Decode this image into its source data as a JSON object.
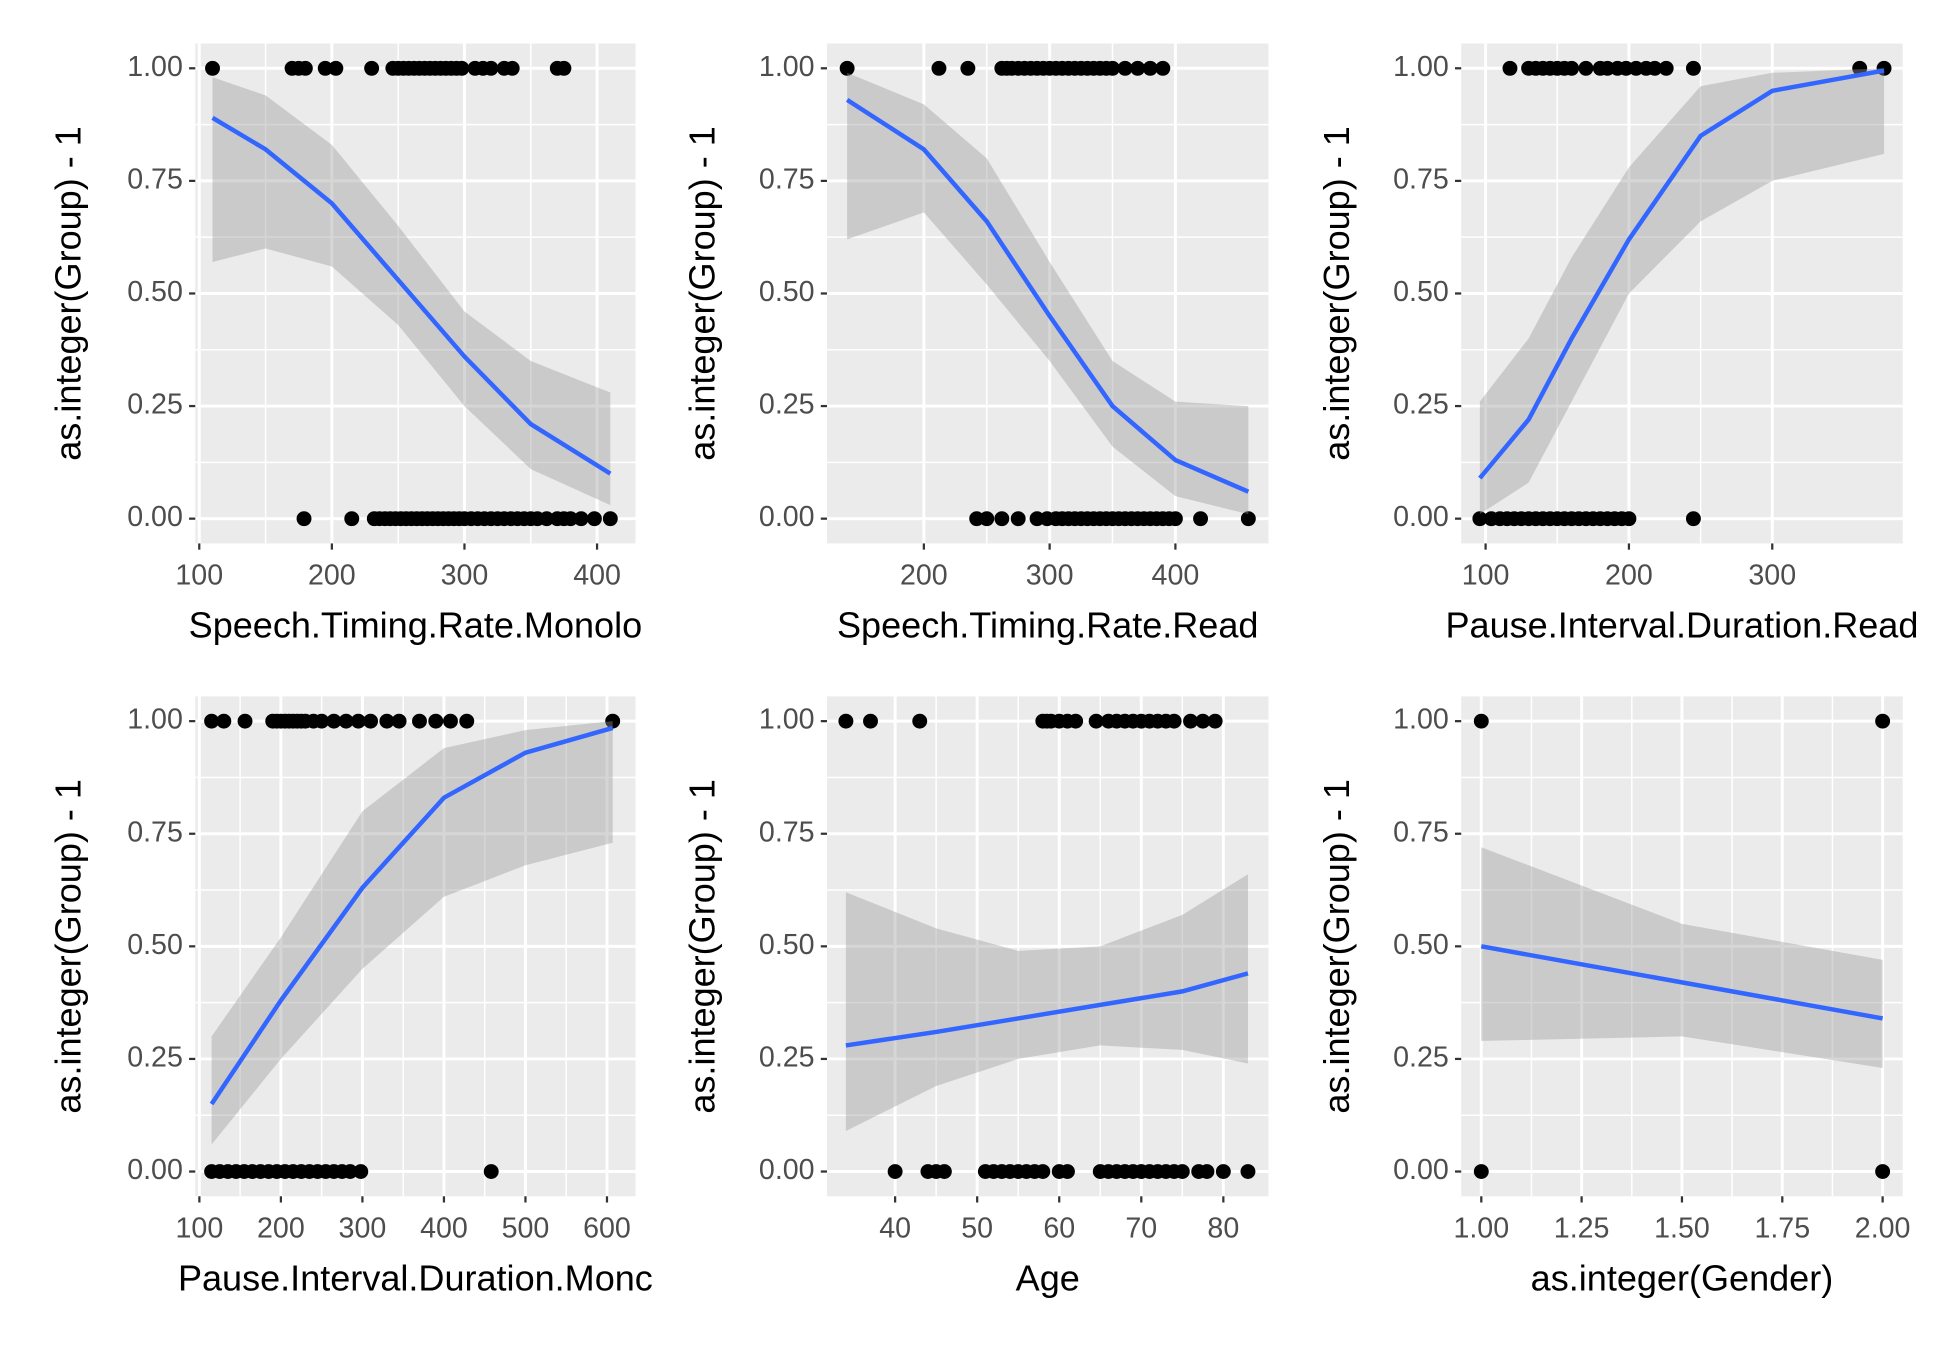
{
  "chart_data": [
    {
      "type": "scatter",
      "x_label": "Speech.Timing.Rate.Monolo",
      "y_label": "as.integer(Group) - 1",
      "xlim": [
        97,
        429
      ],
      "xticks": [
        100,
        200,
        300,
        400
      ],
      "ylim": [
        -0.055,
        1.055
      ],
      "yticks": [
        {
          "value": 0,
          "label": "0.00"
        },
        0.25,
        {
          "value": 0.5,
          "label": "0.50"
        },
        0.75,
        {
          "value": 1,
          "label": "1.00"
        }
      ],
      "grid": true,
      "points": {
        "color": "#000000",
        "x": [
          110,
          170,
          175,
          180,
          195,
          203,
          230,
          246,
          250,
          254,
          258,
          262,
          266,
          270,
          274,
          278,
          282,
          286,
          290,
          294,
          298,
          308,
          314,
          320,
          330,
          336,
          370,
          375,
          179,
          215,
          232,
          236,
          240,
          244,
          248,
          252,
          256,
          260,
          264,
          268,
          272,
          276,
          280,
          284,
          288,
          292,
          296,
          300,
          305,
          310,
          315,
          320,
          325,
          330,
          335,
          340,
          345,
          350,
          355,
          362,
          370,
          375,
          380,
          388,
          398,
          410
        ],
        "y": [
          1,
          1,
          1,
          1,
          1,
          1,
          1,
          1,
          1,
          1,
          1,
          1,
          1,
          1,
          1,
          1,
          1,
          1,
          1,
          1,
          1,
          1,
          1,
          1,
          1,
          1,
          1,
          1,
          0,
          0,
          0,
          0,
          0,
          0,
          0,
          0,
          0,
          0,
          0,
          0,
          0,
          0,
          0,
          0,
          0,
          0,
          0,
          0,
          0,
          0,
          0,
          0,
          0,
          0,
          0,
          0,
          0,
          0,
          0,
          0,
          0,
          0,
          0,
          0,
          0,
          0
        ]
      },
      "fit": {
        "color": "#3366ff",
        "band_color": "#999999",
        "x": [
          110,
          150,
          200,
          250,
          300,
          350,
          410
        ],
        "y": [
          0.89,
          0.82,
          0.7,
          0.53,
          0.36,
          0.21,
          0.1
        ],
        "lower": [
          0.57,
          0.6,
          0.56,
          0.43,
          0.25,
          0.11,
          0.03
        ],
        "upper": [
          0.98,
          0.94,
          0.83,
          0.65,
          0.46,
          0.35,
          0.28
        ]
      }
    },
    {
      "type": "scatter",
      "x_label": "Speech.Timing.Rate.Read",
      "y_label": "as.integer(Group) - 1",
      "xlim": [
        123,
        474
      ],
      "xticks": [
        200,
        300,
        400
      ],
      "ylim": [
        -0.055,
        1.055
      ],
      "yticks": [
        {
          "value": 0,
          "label": "0.00"
        },
        0.25,
        {
          "value": 0.5,
          "label": "0.50"
        },
        0.75,
        {
          "value": 1,
          "label": "1.00"
        }
      ],
      "grid": true,
      "points": {
        "color": "#000000",
        "x": [
          139,
          212,
          235,
          262,
          266,
          270,
          275,
          280,
          285,
          290,
          295,
          300,
          305,
          310,
          315,
          320,
          325,
          330,
          335,
          340,
          345,
          350,
          360,
          370,
          380,
          390,
          242,
          250,
          262,
          275,
          290,
          298,
          305,
          310,
          315,
          320,
          325,
          330,
          335,
          340,
          345,
          350,
          355,
          360,
          365,
          370,
          375,
          380,
          385,
          390,
          395,
          400,
          420,
          458
        ],
        "y": [
          1,
          1,
          1,
          1,
          1,
          1,
          1,
          1,
          1,
          1,
          1,
          1,
          1,
          1,
          1,
          1,
          1,
          1,
          1,
          1,
          1,
          1,
          1,
          1,
          1,
          1,
          0,
          0,
          0,
          0,
          0,
          0,
          0,
          0,
          0,
          0,
          0,
          0,
          0,
          0,
          0,
          0,
          0,
          0,
          0,
          0,
          0,
          0,
          0,
          0,
          0,
          0,
          0,
          0
        ]
      },
      "fit": {
        "color": "#3366ff",
        "band_color": "#999999",
        "x": [
          139,
          200,
          250,
          300,
          350,
          400,
          458
        ],
        "y": [
          0.93,
          0.82,
          0.66,
          0.45,
          0.25,
          0.13,
          0.06
        ],
        "lower": [
          0.62,
          0.68,
          0.52,
          0.35,
          0.16,
          0.05,
          0.01
        ],
        "upper": [
          0.99,
          0.92,
          0.8,
          0.57,
          0.35,
          0.26,
          0.25
        ]
      }
    },
    {
      "type": "scatter",
      "x_label": "Pause.Interval.Duration.Read",
      "y_label": "as.integer(Group) - 1",
      "xlim": [
        83,
        391
      ],
      "xticks": [
        100,
        200,
        300
      ],
      "ylim": [
        -0.055,
        1.055
      ],
      "yticks": [
        {
          "value": 0,
          "label": "0.00"
        },
        0.25,
        {
          "value": 0.5,
          "label": "0.50"
        },
        0.75,
        {
          "value": 1,
          "label": "1.00"
        }
      ],
      "grid": true,
      "points": {
        "color": "#000000",
        "x": [
          117,
          130,
          135,
          140,
          145,
          150,
          155,
          160,
          170,
          180,
          185,
          192,
          198,
          205,
          212,
          218,
          226,
          245,
          361,
          378,
          96,
          104,
          110,
          115,
          120,
          125,
          130,
          135,
          140,
          145,
          150,
          155,
          160,
          165,
          170,
          175,
          180,
          185,
          190,
          195,
          200,
          245
        ],
        "y": [
          1,
          1,
          1,
          1,
          1,
          1,
          1,
          1,
          1,
          1,
          1,
          1,
          1,
          1,
          1,
          1,
          1,
          1,
          1,
          1,
          0,
          0,
          0,
          0,
          0,
          0,
          0,
          0,
          0,
          0,
          0,
          0,
          0,
          0,
          0,
          0,
          0,
          0,
          0,
          0,
          0,
          0
        ]
      },
      "fit": {
        "color": "#3366ff",
        "band_color": "#999999",
        "x": [
          96,
          130,
          160,
          200,
          250,
          300,
          378
        ],
        "y": [
          0.09,
          0.22,
          0.4,
          0.62,
          0.85,
          0.95,
          0.995
        ],
        "lower": [
          0.01,
          0.08,
          0.26,
          0.5,
          0.66,
          0.75,
          0.81
        ],
        "upper": [
          0.26,
          0.4,
          0.58,
          0.78,
          0.96,
          0.99,
          1.0
        ]
      }
    },
    {
      "type": "scatter",
      "x_label": "Pause.Interval.Duration.Monc",
      "y_label": "as.integer(Group) - 1",
      "xlim": [
        95,
        635
      ],
      "xticks": [
        100,
        200,
        300,
        400,
        500,
        600
      ],
      "ylim": [
        -0.055,
        1.055
      ],
      "yticks": [
        {
          "value": 0,
          "label": "0.00"
        },
        0.25,
        {
          "value": 0.5,
          "label": "0.50"
        },
        0.75,
        {
          "value": 1,
          "label": "1.00"
        }
      ],
      "grid": true,
      "points": {
        "color": "#000000",
        "x": [
          115,
          130,
          156,
          190,
          195,
          200,
          205,
          210,
          215,
          220,
          225,
          230,
          240,
          250,
          265,
          280,
          295,
          310,
          330,
          345,
          370,
          390,
          408,
          428,
          607,
          115,
          125,
          135,
          145,
          155,
          165,
          175,
          185,
          195,
          205,
          215,
          225,
          235,
          245,
          255,
          265,
          275,
          285,
          298,
          458
        ],
        "y": [
          1,
          1,
          1,
          1,
          1,
          1,
          1,
          1,
          1,
          1,
          1,
          1,
          1,
          1,
          1,
          1,
          1,
          1,
          1,
          1,
          1,
          1,
          1,
          1,
          1,
          0,
          0,
          0,
          0,
          0,
          0,
          0,
          0,
          0,
          0,
          0,
          0,
          0,
          0,
          0,
          0,
          0,
          0,
          0,
          0
        ]
      },
      "fit": {
        "color": "#3366ff",
        "band_color": "#999999",
        "x": [
          115,
          200,
          300,
          400,
          500,
          607
        ],
        "y": [
          0.15,
          0.38,
          0.63,
          0.83,
          0.93,
          0.985
        ],
        "lower": [
          0.06,
          0.25,
          0.45,
          0.61,
          0.68,
          0.73
        ],
        "upper": [
          0.3,
          0.52,
          0.8,
          0.94,
          0.98,
          1.0
        ]
      }
    },
    {
      "type": "scatter",
      "x_label": "Age",
      "y_label": "as.integer(Group) - 1",
      "xlim": [
        31.7,
        85.5
      ],
      "xticks": [
        40,
        50,
        60,
        70,
        80
      ],
      "ylim": [
        -0.055,
        1.055
      ],
      "yticks": [
        {
          "value": 0,
          "label": "0.00"
        },
        0.25,
        {
          "value": 0.5,
          "label": "0.50"
        },
        0.75,
        {
          "value": 1,
          "label": "1.00"
        }
      ],
      "grid": true,
      "points": {
        "color": "#000000",
        "x": [
          34,
          37,
          43,
          58,
          58.5,
          59,
          60,
          61,
          62,
          64.5,
          66,
          67,
          68,
          69,
          70,
          71,
          72,
          73,
          74,
          76,
          77.5,
          79,
          40,
          44,
          45,
          46,
          51,
          52,
          53,
          54,
          55,
          56,
          57,
          58,
          60,
          61,
          65,
          66,
          67,
          68,
          69,
          70,
          71,
          72,
          73,
          74,
          75,
          77,
          78,
          80,
          83
        ],
        "y": [
          1,
          1,
          1,
          1,
          1,
          1,
          1,
          1,
          1,
          1,
          1,
          1,
          1,
          1,
          1,
          1,
          1,
          1,
          1,
          1,
          1,
          1,
          0,
          0,
          0,
          0,
          0,
          0,
          0,
          0,
          0,
          0,
          0,
          0,
          0,
          0,
          0,
          0,
          0,
          0,
          0,
          0,
          0,
          0,
          0,
          0,
          0,
          0,
          0,
          0,
          0
        ]
      },
      "fit": {
        "color": "#3366ff",
        "band_color": "#999999",
        "x": [
          34,
          45,
          55,
          65,
          75,
          83
        ],
        "y": [
          0.28,
          0.31,
          0.34,
          0.37,
          0.4,
          0.44
        ],
        "lower": [
          0.09,
          0.19,
          0.25,
          0.28,
          0.27,
          0.24
        ],
        "upper": [
          0.62,
          0.54,
          0.49,
          0.5,
          0.57,
          0.66
        ]
      }
    },
    {
      "type": "scatter",
      "x_label": "as.integer(Gender)",
      "y_label": "as.integer(Group) - 1",
      "xlim": [
        0.95,
        2.05
      ],
      "xticks": [
        {
          "value": 1,
          "label": "1.00"
        },
        1.25,
        {
          "value": 1.5,
          "label": "1.50"
        },
        1.75,
        {
          "value": 2,
          "label": "2.00"
        }
      ],
      "ylim": [
        -0.055,
        1.055
      ],
      "yticks": [
        {
          "value": 0,
          "label": "0.00"
        },
        0.25,
        {
          "value": 0.5,
          "label": "0.50"
        },
        0.75,
        {
          "value": 1,
          "label": "1.00"
        }
      ],
      "grid": true,
      "points": {
        "color": "#000000",
        "x": [
          1,
          2,
          1,
          2
        ],
        "y": [
          1,
          1,
          0,
          0
        ]
      },
      "fit": {
        "color": "#3366ff",
        "band_color": "#999999",
        "x": [
          1,
          1.5,
          2
        ],
        "y": [
          0.5,
          0.42,
          0.34
        ],
        "lower": [
          0.29,
          0.3,
          0.23
        ],
        "upper": [
          0.72,
          0.55,
          0.47
        ]
      }
    }
  ]
}
